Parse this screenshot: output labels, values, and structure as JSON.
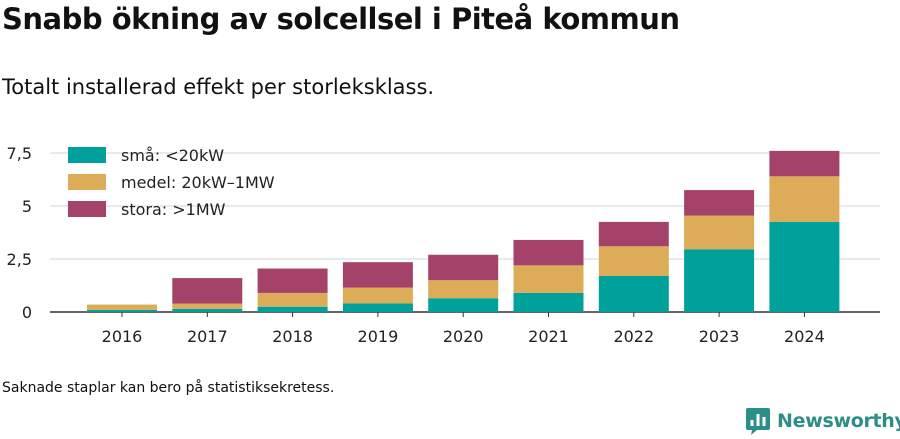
{
  "header": {
    "title": "Snabb ökning av solcellsel i Piteå kommun",
    "subtitle": "Totalt installerad effekt per storleksklass."
  },
  "footer": {
    "note": "Saknade staplar kan bero på statistiksekretess.",
    "brand": "Newsworthy",
    "brand_icon": "newsworthy-logo-icon",
    "brand_color": "#2c8f87"
  },
  "chart_data": {
    "type": "bar",
    "stacked": true,
    "title": "Snabb ökning av solcellsel i Piteå kommun",
    "subtitle": "Totalt installerad effekt per storleksklass.",
    "xlabel": "",
    "ylabel": "",
    "categories": [
      "2016",
      "2017",
      "2018",
      "2019",
      "2020",
      "2021",
      "2022",
      "2023",
      "2024"
    ],
    "series": [
      {
        "name": "små: <20kW",
        "color": "#00a19a",
        "values": [
          0.1,
          0.15,
          0.25,
          0.4,
          0.65,
          0.9,
          1.7,
          2.95,
          4.25
        ]
      },
      {
        "name": "medel: 20kW–1MW",
        "color": "#dcac58",
        "values": [
          0.25,
          0.25,
          0.65,
          0.75,
          0.85,
          1.3,
          1.4,
          1.6,
          2.15
        ]
      },
      {
        "name": "stora: >1MW",
        "color": "#a4426a",
        "values": [
          0.0,
          1.2,
          1.15,
          1.2,
          1.2,
          1.2,
          1.15,
          1.2,
          1.2
        ]
      }
    ],
    "y_ticks": [
      0,
      2.5,
      5,
      7.5
    ],
    "y_tick_labels": [
      "0",
      "2,5",
      "5",
      "7,5"
    ],
    "ylim": [
      0,
      7.8
    ],
    "grid": true,
    "legend_position": "top-left",
    "axis_color": "#333333",
    "grid_color": "#dddddd"
  }
}
